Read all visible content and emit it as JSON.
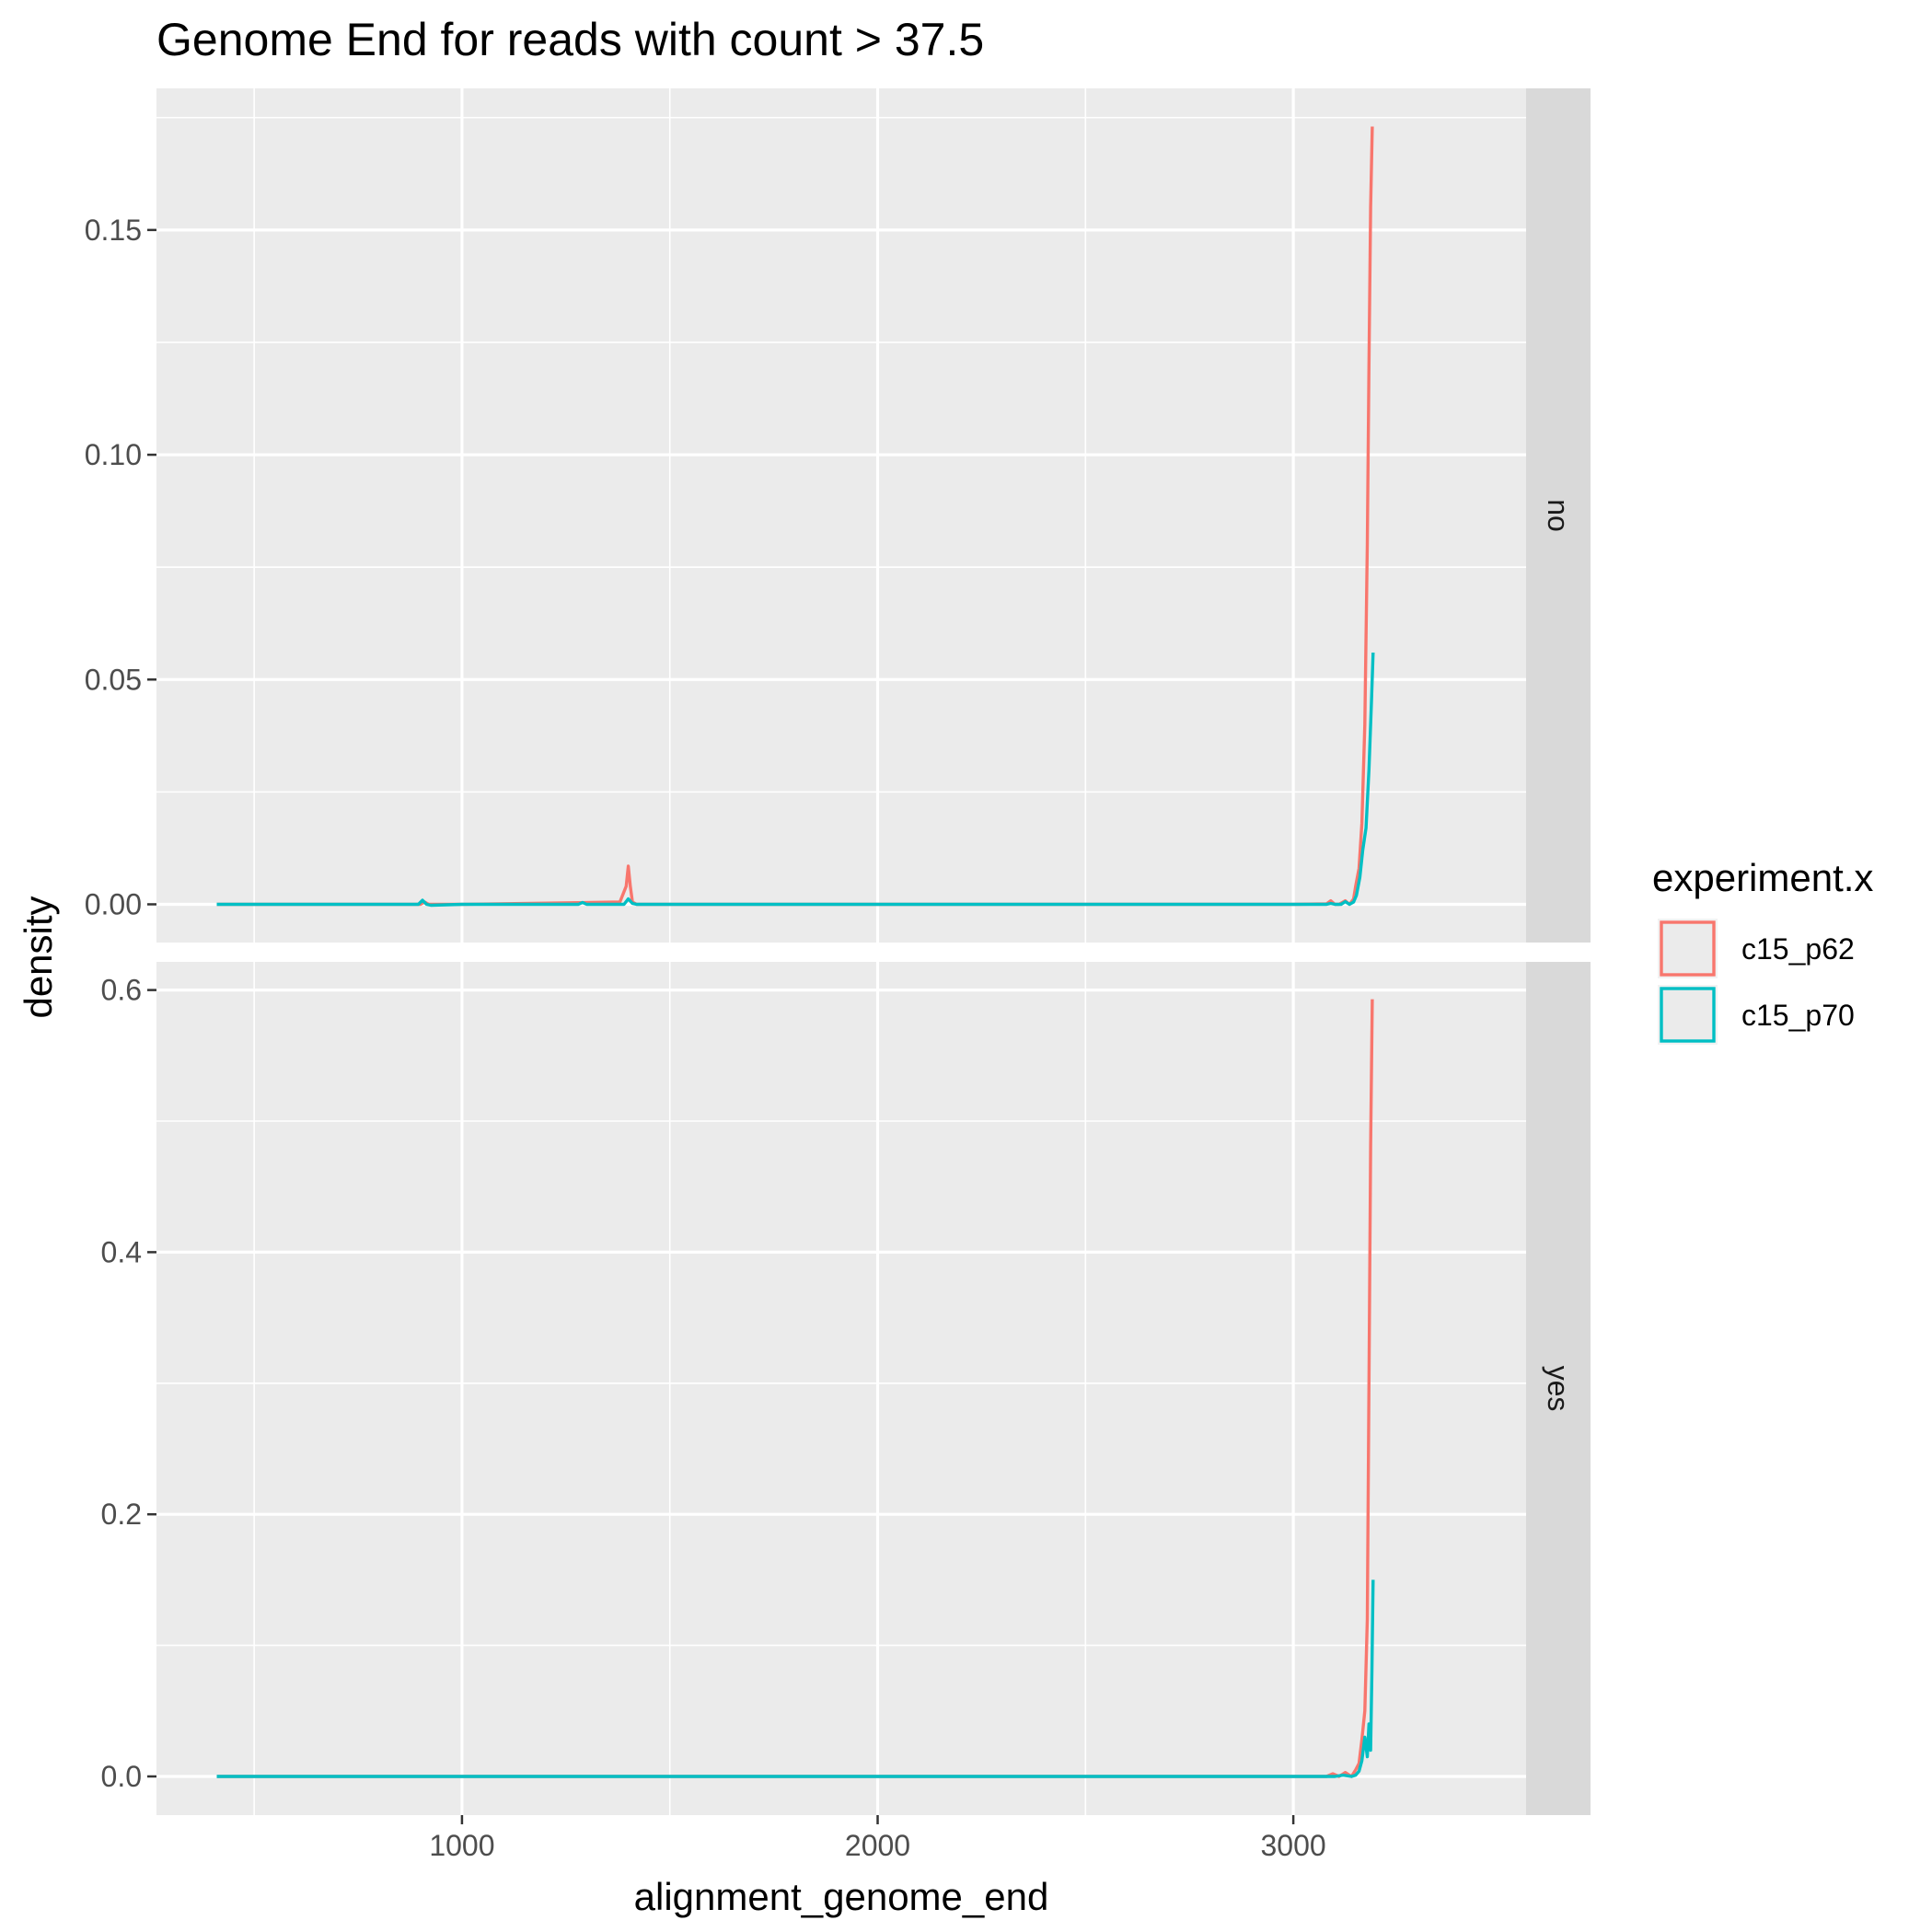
{
  "chart_data": {
    "type": "line",
    "title": "Genome End for reads with count > 37.5",
    "xlabel": "alignment_genome_end",
    "ylabel": "density",
    "xlim": [
      265,
      3560
    ],
    "x_ticks": [
      1000,
      2000,
      3000
    ],
    "x_tick_labels": [
      "1000",
      "2000",
      "3000"
    ],
    "x_minor_ticks": [
      500,
      1500,
      2500
    ],
    "grid": true,
    "legend": {
      "title": "experiment.x",
      "position": "right",
      "entries": [
        "c15_p62",
        "c15_p70"
      ]
    },
    "colors": {
      "c15_p62": "#F8766D",
      "c15_p70": "#00BFC4",
      "panel_bg": "#EBEBEB",
      "strip_bg": "#D9D9D9"
    },
    "facets": [
      {
        "strip": "no",
        "ylim": [
          -0.0085,
          0.1815
        ],
        "y_ticks": [
          0.0,
          0.05,
          0.1,
          0.15
        ],
        "y_tick_labels": [
          "0.00",
          "0.05",
          "0.10",
          "0.15"
        ],
        "y_minor_ticks": [
          0.025,
          0.075,
          0.125,
          0.175
        ],
        "series": [
          {
            "name": "c15_p62",
            "x": [
              410,
              900,
              910,
              920,
              1000,
              1380,
              1395,
              1400,
              1405,
              1410,
              1420,
              1430,
              1600,
              2000,
              2500,
              3000,
              3080,
              3090,
              3100,
              3110,
              3125,
              3135,
              3145,
              3150,
              3158,
              3165,
              3172,
              3178,
              3182,
              3186,
              3190
            ],
            "y": [
              0.0,
              0.0,
              0.0005,
              0.0,
              0.0,
              0.0005,
              0.004,
              0.0085,
              0.004,
              0.0005,
              0.0,
              0.0,
              0.0,
              0.0,
              0.0,
              0.0,
              0.0001,
              0.0008,
              0.0,
              0.0,
              0.0008,
              0.0,
              0.0012,
              0.004,
              0.008,
              0.018,
              0.04,
              0.08,
              0.12,
              0.155,
              0.173
            ]
          },
          {
            "name": "c15_p70",
            "x": [
              410,
              895,
              905,
              915,
              925,
              1000,
              1280,
              1290,
              1300,
              1390,
              1400,
              1410,
              1420,
              1600,
              2000,
              2500,
              3000,
              3080,
              3090,
              3100,
              3115,
              3125,
              3135,
              3145,
              3152,
              3160,
              3167,
              3175,
              3182,
              3188,
              3192
            ],
            "y": [
              0.0,
              0.0,
              0.0009,
              0.0,
              -0.0002,
              0.0,
              0.0,
              0.0004,
              0.0,
              0.0,
              0.0012,
              0.0002,
              0.0,
              0.0,
              0.0,
              0.0,
              0.0,
              0.0,
              0.0002,
              0.0,
              0.0,
              0.0006,
              0.0,
              0.0005,
              0.002,
              0.006,
              0.012,
              0.017,
              0.03,
              0.045,
              0.056
            ]
          }
        ]
      },
      {
        "strip": "yes",
        "ylim": [
          -0.0295,
          0.6215
        ],
        "y_ticks": [
          0.0,
          0.2,
          0.4,
          0.6
        ],
        "y_tick_labels": [
          "0.0",
          "0.2",
          "0.4",
          "0.6"
        ],
        "y_minor_ticks": [
          0.1,
          0.3,
          0.5
        ],
        "series": [
          {
            "name": "c15_p62",
            "x": [
              410,
              1000,
              2000,
              2500,
              3000,
              3080,
              3095,
              3110,
              3125,
              3140,
              3150,
              3158,
              3165,
              3172,
              3178,
              3182,
              3186,
              3190
            ],
            "y": [
              0.0,
              0.0,
              0.0,
              0.0,
              0.0,
              0.0,
              0.002,
              0.0,
              0.003,
              0.0,
              0.005,
              0.01,
              0.028,
              0.05,
              0.12,
              0.3,
              0.48,
              0.593
            ]
          },
          {
            "name": "c15_p70",
            "x": [
              410,
              1000,
              2000,
              2500,
              3000,
              3080,
              3100,
              3120,
              3140,
              3150,
              3158,
              3165,
              3172,
              3178,
              3182,
              3186,
              3189,
              3192
            ],
            "y": [
              0.0,
              0.0,
              0.0,
              0.0,
              0.0,
              0.0,
              0.0,
              0.001,
              0.0,
              0.001,
              0.004,
              0.012,
              0.03,
              0.015,
              0.04,
              0.02,
              0.08,
              0.15
            ]
          }
        ]
      }
    ]
  }
}
